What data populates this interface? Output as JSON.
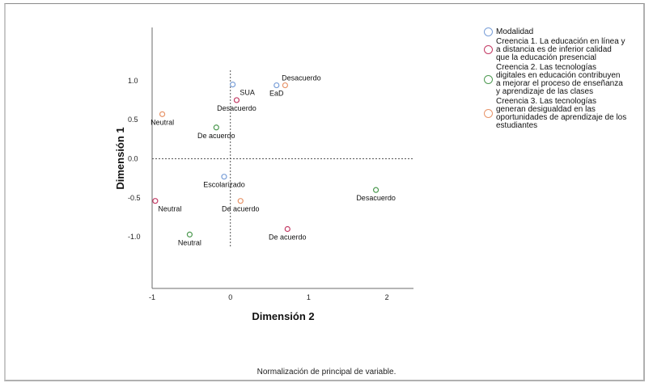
{
  "chart_data": {
    "type": "scatter",
    "title": "",
    "xlabel": "Dimensión 2",
    "ylabel": "Dimensión 1",
    "xlim": [
      -1,
      2.34
    ],
    "ylim": [
      -1.66,
      1.68
    ],
    "xticks": [
      -1,
      0,
      1,
      2
    ],
    "xtick_labels": [
      "-1",
      "0",
      "1",
      "2"
    ],
    "yticks": [
      1.0,
      0.5,
      0.0,
      -0.5,
      -1.0
    ],
    "ytick_labels": [
      "1.0",
      "0.5",
      "0.0",
      "-0.5",
      "-1.0"
    ],
    "reference_lines": {
      "x": 0,
      "y": 0,
      "style": "dotted"
    },
    "grid": false,
    "legend_position": "right",
    "footnote": "Normalización de principal de variable.",
    "series": [
      {
        "name": "Modalidad",
        "color": "#7a9fd8",
        "points": [
          {
            "label": "SUA",
            "x": 0.03,
            "y": 0.95,
            "label_pos": "below-right"
          },
          {
            "label": "EaD",
            "x": 0.59,
            "y": 0.94,
            "label_pos": "below"
          },
          {
            "label": "Escolarizado",
            "x": -0.08,
            "y": -0.23,
            "label_pos": "below"
          }
        ]
      },
      {
        "name": "Creencia 1. La educación en línea y a distancia es de inferior calidad que la educación presencial",
        "color": "#c33a64",
        "points": [
          {
            "label": "Desacuerdo",
            "x": 0.08,
            "y": 0.75,
            "label_pos": "below"
          },
          {
            "label": "Neutral",
            "x": -0.96,
            "y": -0.54,
            "label_pos": "below-right"
          },
          {
            "label": "De acuerdo",
            "x": 0.73,
            "y": -0.9,
            "label_pos": "below"
          }
        ]
      },
      {
        "name": "Creencia 2.  Las tecnologías digitales en educación contribuyen a mejorar el proceso de enseñanza y aprendizaje de las clases",
        "color": "#4e9a52",
        "points": [
          {
            "label": "De acuerdo",
            "x": -0.18,
            "y": 0.4,
            "label_pos": "below"
          },
          {
            "label": "Neutral",
            "x": -0.52,
            "y": -0.97,
            "label_pos": "below"
          },
          {
            "label": "Desacuerdo",
            "x": 1.86,
            "y": -0.4,
            "label_pos": "below"
          }
        ]
      },
      {
        "name": "Creencia 3. Las tecnologías generan desigualdad en las oportunidades de aprendizaje de los estudiantes",
        "color": "#e8956a",
        "points": [
          {
            "label": "Desacuerdo",
            "x": 0.7,
            "y": 0.94,
            "label_pos": "above"
          },
          {
            "label": "Neutral",
            "x": -0.87,
            "y": 0.57,
            "label_pos": "below"
          },
          {
            "label": "De acuerdo",
            "x": 0.13,
            "y": -0.54,
            "label_pos": "below"
          }
        ]
      }
    ]
  },
  "legend": {
    "items": [
      {
        "label": "Modalidad",
        "lines": [
          "Modalidad"
        ],
        "color": "#7a9fd8"
      },
      {
        "label": "Creencia 1",
        "lines": [
          "Creencia 1. La educación en línea y",
          "a distancia es de inferior calidad",
          "que la educación presencial"
        ],
        "color": "#c33a64"
      },
      {
        "label": "Creencia 2",
        "lines": [
          "Creencia 2.  Las tecnologías",
          "digitales en educación contribuyen",
          "a mejorar el proceso de enseñanza",
          "y aprendizaje de las clases"
        ],
        "color": "#4e9a52"
      },
      {
        "label": "Creencia 3",
        "lines": [
          "Creencia 3. Las tecnologías",
          "generan desigualdad en las",
          "oportunidades de aprendizaje de los",
          "estudiantes"
        ],
        "color": "#e8956a"
      }
    ]
  }
}
